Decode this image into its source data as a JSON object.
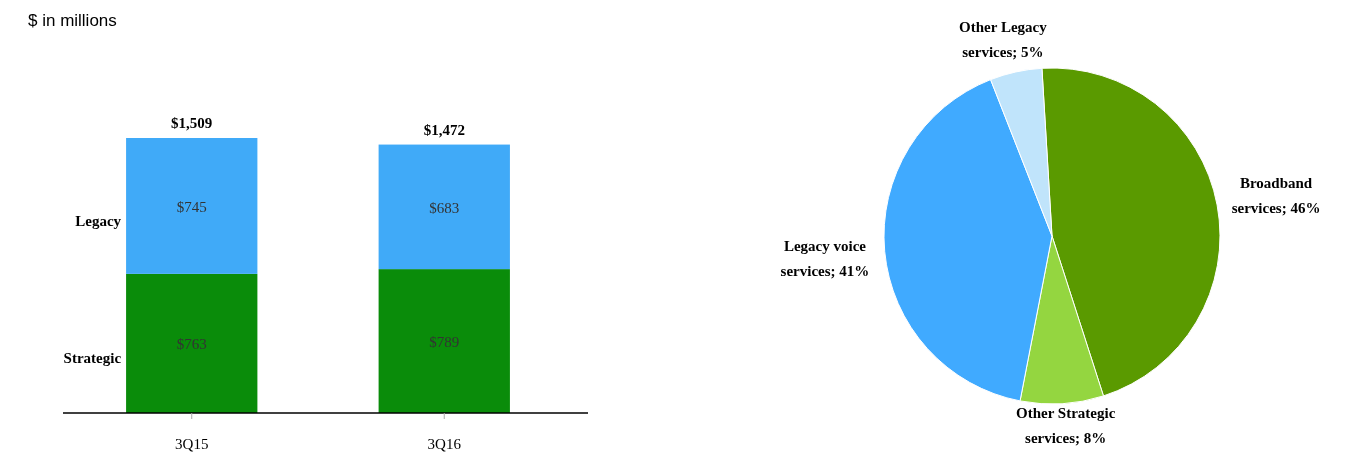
{
  "chart_data": [
    {
      "type": "bar",
      "subtitle": "$ in millions",
      "categories": [
        "3Q15",
        "3Q16"
      ],
      "stacked": true,
      "series": [
        {
          "name": "Strategic",
          "color": "#0a8c0a",
          "values": [
            763,
            789
          ],
          "value_labels": [
            "$763",
            "$789"
          ]
        },
        {
          "name": "Legacy",
          "color": "#40aaf8",
          "values": [
            745,
            683
          ],
          "value_labels": [
            "$745",
            "$683"
          ]
        }
      ],
      "totals": [
        "$1,509",
        "$1,472"
      ],
      "legend": "left"
    },
    {
      "type": "pie",
      "categories": [
        "Broadband services",
        "Other Strategic services",
        "Legacy voice services",
        "Other Legacy services"
      ],
      "values": [
        46,
        8,
        41,
        5
      ],
      "colors": [
        "#5a9a00",
        "#94d640",
        "#40aaff",
        "#c0e4fb"
      ],
      "value_labels": [
        "46%",
        "8%",
        "41%",
        "5%"
      ]
    }
  ]
}
